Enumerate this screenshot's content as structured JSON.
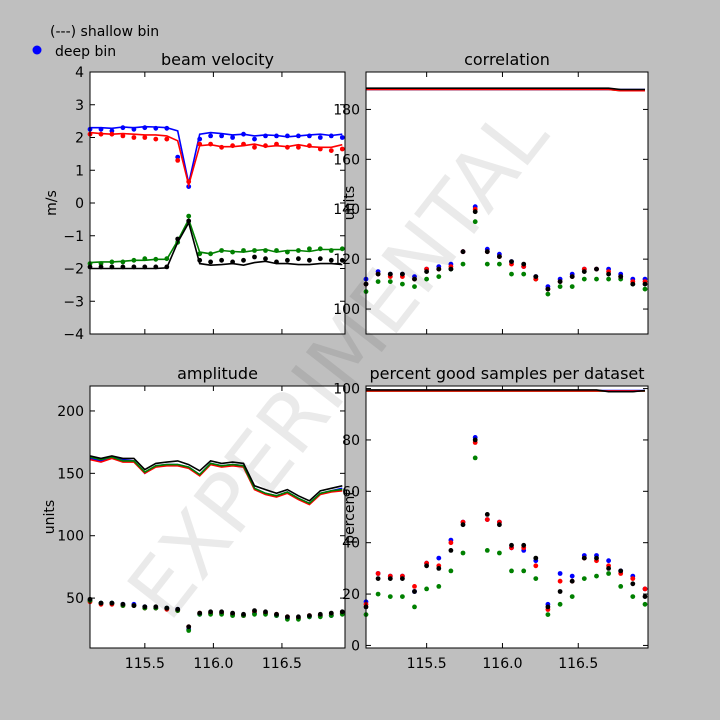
{
  "legend": {
    "line_label": "(---) shallow bin",
    "dot_label": "deep bin"
  },
  "watermark": "EXPERIMENTAL",
  "colors": {
    "background": "#bfbfbf",
    "blue": "#0000ff",
    "red": "#ff0000",
    "green": "#008000",
    "black": "#000000"
  },
  "chart_data": [
    {
      "type": "line",
      "title": "beam velocity",
      "ylabel": "m/s",
      "xlabel": "",
      "xlim": [
        115.1,
        116.96
      ],
      "ylim": [
        -4,
        4
      ],
      "yticks": [
        "4",
        "3",
        "2",
        "1",
        "0",
        "−1",
        "−2",
        "−3",
        "−4"
      ],
      "xticks": [],
      "x": [
        115.1,
        115.18,
        115.26,
        115.34,
        115.42,
        115.5,
        115.58,
        115.66,
        115.74,
        115.82,
        115.9,
        115.98,
        116.06,
        116.14,
        116.22,
        116.3,
        116.38,
        116.46,
        116.54,
        116.62,
        116.7,
        116.78,
        116.86,
        116.94
      ],
      "series": [
        {
          "color": "blue",
          "line": [
            2.3,
            2.3,
            2.28,
            2.32,
            2.3,
            2.33,
            2.32,
            2.3,
            2.2,
            0.6,
            2.1,
            2.15,
            2.12,
            2.08,
            2.1,
            2.05,
            2.08,
            2.06,
            2.02,
            2.05,
            2.08,
            2.1,
            2.06,
            2.1
          ],
          "dots": [
            2.25,
            2.25,
            2.2,
            2.3,
            2.25,
            2.3,
            2.28,
            2.28,
            1.4,
            0.5,
            1.95,
            2.05,
            2.05,
            2.0,
            2.1,
            1.95,
            2.05,
            2.05,
            2.05,
            2.05,
            2.05,
            2.0,
            2.05,
            2.0
          ]
        },
        {
          "color": "red",
          "line": [
            2.15,
            2.12,
            2.1,
            2.12,
            2.1,
            2.08,
            2.08,
            2.05,
            1.9,
            0.55,
            1.75,
            1.78,
            1.72,
            1.72,
            1.75,
            1.8,
            1.72,
            1.75,
            1.72,
            1.78,
            1.72,
            1.7,
            1.7,
            1.78
          ],
          "dots": [
            2.1,
            2.1,
            2.1,
            2.05,
            2.0,
            2.0,
            1.95,
            1.95,
            1.3,
            0.65,
            1.8,
            1.8,
            1.7,
            1.75,
            1.8,
            1.7,
            1.75,
            1.8,
            1.7,
            1.7,
            1.75,
            1.65,
            1.6,
            1.65
          ]
        },
        {
          "color": "green",
          "line": [
            -1.82,
            -1.8,
            -1.8,
            -1.78,
            -1.75,
            -1.75,
            -1.72,
            -1.72,
            -1.15,
            -0.5,
            -1.5,
            -1.55,
            -1.45,
            -1.48,
            -1.5,
            -1.45,
            -1.42,
            -1.5,
            -1.45,
            -1.45,
            -1.48,
            -1.42,
            -1.42,
            -1.42
          ],
          "dots": [
            -1.85,
            -1.85,
            -1.8,
            -1.8,
            -1.75,
            -1.7,
            -1.72,
            -1.7,
            -1.2,
            -0.4,
            -1.55,
            -1.55,
            -1.45,
            -1.5,
            -1.45,
            -1.45,
            -1.45,
            -1.45,
            -1.5,
            -1.45,
            -1.4,
            -1.4,
            -1.45,
            -1.4
          ]
        },
        {
          "color": "black",
          "line": [
            -2.0,
            -2.0,
            -2.0,
            -2.0,
            -2.0,
            -2.0,
            -2.0,
            -1.98,
            -1.2,
            -0.6,
            -1.85,
            -1.9,
            -1.88,
            -1.85,
            -1.9,
            -1.82,
            -1.78,
            -1.85,
            -1.85,
            -1.88,
            -1.88,
            -1.85,
            -1.85,
            -1.88
          ],
          "dots": [
            -1.95,
            -1.95,
            -1.95,
            -1.95,
            -1.95,
            -1.95,
            -1.95,
            -1.95,
            -1.1,
            -0.55,
            -1.75,
            -1.8,
            -1.75,
            -1.8,
            -1.75,
            -1.65,
            -1.7,
            -1.8,
            -1.75,
            -1.7,
            -1.75,
            -1.7,
            -1.75,
            -1.75
          ]
        }
      ]
    },
    {
      "type": "line",
      "title": "correlation",
      "ylabel": "units",
      "xlabel": "",
      "xlim": [
        115.1,
        116.96
      ],
      "ylim": [
        90,
        195
      ],
      "yticks": [
        "180",
        "160",
        "140",
        "120",
        "100"
      ],
      "ytick_values": [
        180,
        160,
        140,
        120,
        100
      ],
      "xticks": [],
      "x": [
        115.1,
        115.18,
        115.26,
        115.34,
        115.42,
        115.5,
        115.58,
        115.66,
        115.74,
        115.82,
        115.9,
        115.98,
        116.06,
        116.14,
        116.22,
        116.3,
        116.38,
        116.46,
        116.54,
        116.62,
        116.7,
        116.78,
        116.86,
        116.94
      ],
      "series": [
        {
          "color": "green",
          "line": [
            188,
            188,
            188,
            188,
            188,
            188,
            188,
            188,
            188,
            188,
            188,
            188,
            188,
            188,
            188,
            188,
            188,
            188,
            188,
            188,
            188,
            187.5,
            187.5,
            187.5
          ],
          "dots": [
            107,
            111,
            111,
            110,
            109,
            112,
            113,
            116,
            118,
            135,
            118,
            118,
            114,
            114,
            112,
            106,
            109,
            109,
            112,
            112,
            112,
            112,
            110,
            108
          ]
        },
        {
          "color": "blue",
          "line": [
            188,
            188,
            188,
            188,
            188,
            188,
            188,
            188,
            188,
            188,
            188,
            188,
            188,
            188,
            188,
            188,
            188,
            188,
            188,
            188,
            188,
            188,
            188,
            188
          ],
          "dots": [
            112,
            115,
            114,
            114,
            113,
            116,
            117,
            118,
            123,
            141,
            124,
            122,
            119,
            117,
            113,
            109,
            112,
            114,
            116,
            116,
            116,
            114,
            112,
            112
          ]
        },
        {
          "color": "red",
          "line": [
            188,
            188,
            188,
            188,
            188,
            188,
            188,
            188,
            188,
            188,
            188,
            188,
            188,
            188,
            188,
            188,
            188,
            188,
            188,
            188,
            188,
            187.5,
            187.5,
            187.5
          ],
          "dots": [
            110,
            114,
            113,
            113,
            112,
            116,
            116,
            117,
            123,
            140,
            123,
            121,
            118,
            117,
            112,
            108,
            111,
            113,
            116,
            116,
            115,
            113,
            111,
            111
          ]
        },
        {
          "color": "black",
          "line": [
            188.5,
            188.5,
            188.5,
            188.5,
            188.5,
            188.5,
            188.5,
            188.5,
            188.5,
            188.5,
            188.5,
            188.5,
            188.5,
            188.5,
            188.5,
            188.5,
            188.5,
            188.5,
            188.5,
            188.5,
            188.5,
            188,
            188,
            188
          ],
          "dots": [
            110,
            114,
            114,
            114,
            112,
            115,
            116,
            116,
            123,
            139,
            123,
            121,
            119,
            118,
            113,
            108,
            111,
            113,
            115,
            116,
            114,
            113,
            110,
            110
          ]
        }
      ]
    },
    {
      "type": "line",
      "title": "amplitude",
      "ylabel": "units",
      "xlabel": "",
      "xlim": [
        115.1,
        116.96
      ],
      "ylim": [
        10,
        220
      ],
      "yticks": [
        "200",
        "150",
        "100",
        "50"
      ],
      "ytick_values": [
        200,
        150,
        100,
        50
      ],
      "xticks": [
        "115.5",
        "116.0",
        "116.5"
      ],
      "xtick_values": [
        115.5,
        116.0,
        116.5
      ],
      "x": [
        115.1,
        115.18,
        115.26,
        115.34,
        115.42,
        115.5,
        115.58,
        115.66,
        115.74,
        115.82,
        115.9,
        115.98,
        116.06,
        116.14,
        116.22,
        116.3,
        116.38,
        116.46,
        116.54,
        116.62,
        116.7,
        116.78,
        116.86,
        116.94
      ],
      "series": [
        {
          "color": "blue",
          "line": [
            162,
            160,
            163,
            161,
            160,
            150,
            156,
            157,
            157,
            155,
            149,
            158,
            156,
            157,
            156,
            138,
            134,
            132,
            135,
            130,
            126,
            134,
            136,
            138
          ],
          "dots": [
            48,
            46,
            46,
            45,
            45,
            43,
            42,
            42,
            41,
            25,
            37,
            38,
            38,
            37,
            36,
            38,
            38,
            36,
            34,
            34,
            35,
            36,
            36,
            38
          ]
        },
        {
          "color": "red",
          "line": [
            161,
            159,
            162,
            159,
            159,
            150,
            155,
            156,
            156,
            154,
            148,
            157,
            155,
            156,
            155,
            137,
            133,
            131,
            134,
            129,
            125,
            133,
            135,
            136
          ],
          "dots": [
            47,
            45,
            45,
            44,
            44,
            42,
            42,
            41,
            40,
            27,
            38,
            38,
            38,
            37,
            36,
            39,
            38,
            37,
            35,
            34,
            36,
            36,
            37,
            38
          ]
        },
        {
          "color": "green",
          "line": [
            163,
            161,
            163,
            160,
            160,
            151,
            156,
            157,
            157,
            155,
            149,
            158,
            156,
            157,
            156,
            138,
            134,
            132,
            135,
            130,
            126,
            134,
            136,
            137
          ],
          "dots": [
            48,
            46,
            46,
            44,
            44,
            42,
            42,
            42,
            40,
            24,
            37,
            37,
            37,
            36,
            36,
            37,
            37,
            36,
            33,
            33,
            35,
            35,
            36,
            37
          ]
        },
        {
          "color": "black",
          "line": [
            164,
            162,
            164,
            162,
            162,
            153,
            158,
            159,
            160,
            157,
            152,
            160,
            158,
            159,
            158,
            140,
            137,
            134,
            137,
            132,
            128,
            136,
            138,
            140
          ],
          "dots": [
            49,
            46,
            46,
            45,
            44,
            43,
            43,
            42,
            41,
            27,
            38,
            39,
            39,
            38,
            37,
            40,
            39,
            37,
            35,
            35,
            36,
            37,
            38,
            39
          ]
        }
      ]
    },
    {
      "type": "line",
      "title": "percent good samples per dataset",
      "ylabel": "percent",
      "xlabel": "",
      "xlim": [
        115.1,
        116.96
      ],
      "ylim": [
        -1,
        101
      ],
      "yticks": [
        "100",
        "80",
        "60",
        "40",
        "20",
        "0"
      ],
      "ytick_values": [
        100,
        80,
        60,
        40,
        20,
        0
      ],
      "xticks": [
        "115.5",
        "116.0",
        "116.5"
      ],
      "xtick_values": [
        115.5,
        116.0,
        116.5
      ],
      "x": [
        115.1,
        115.18,
        115.26,
        115.34,
        115.42,
        115.5,
        115.58,
        115.66,
        115.74,
        115.82,
        115.9,
        115.98,
        116.06,
        116.14,
        116.22,
        116.3,
        116.38,
        116.46,
        116.54,
        116.62,
        116.7,
        116.78,
        116.86,
        116.94
      ],
      "series": [
        {
          "color": "green",
          "line": [
            99,
            99,
            99,
            99,
            99,
            99,
            99,
            99,
            99,
            99,
            99,
            99,
            99,
            99,
            99,
            99,
            99,
            99,
            99,
            99,
            99,
            99,
            99,
            99
          ],
          "dots": [
            12,
            20,
            19,
            19,
            15,
            22,
            23,
            29,
            36,
            73,
            37,
            36,
            29,
            29,
            26,
            12,
            16,
            19,
            26,
            27,
            28,
            23,
            19,
            16
          ]
        },
        {
          "color": "blue",
          "line": [
            99.2,
            99.2,
            99.2,
            99.2,
            99.2,
            99.2,
            99.2,
            99.2,
            99.2,
            99.2,
            99.2,
            99.2,
            99.2,
            99.2,
            99.2,
            99.2,
            99.2,
            99.2,
            99.2,
            99.2,
            99.2,
            99.2,
            99.2,
            99.2
          ],
          "dots": [
            17,
            28,
            27,
            27,
            21,
            32,
            34,
            41,
            48,
            81,
            49,
            48,
            38,
            37,
            33,
            16,
            28,
            27,
            35,
            35,
            33,
            29,
            27,
            22
          ]
        },
        {
          "color": "red",
          "line": [
            99.1,
            99.1,
            99.1,
            99.1,
            99.1,
            99.1,
            99.1,
            99.1,
            99.1,
            99.1,
            99.1,
            99.1,
            99.1,
            99.1,
            99.1,
            99.1,
            99.1,
            99.1,
            99.1,
            99.1,
            99.1,
            99.1,
            99.1,
            99.1
          ],
          "dots": [
            16,
            28,
            27,
            27,
            23,
            32,
            31,
            40,
            48,
            79,
            49,
            48,
            38,
            38,
            31,
            14,
            25,
            25,
            34,
            33,
            31,
            28,
            26,
            22
          ]
        },
        {
          "color": "black",
          "line": [
            99.5,
            99.5,
            99.5,
            99.5,
            99.5,
            99.5,
            99.5,
            99.5,
            99.5,
            99.5,
            99.5,
            99.5,
            99.5,
            99.5,
            99.5,
            99.5,
            99.5,
            99.5,
            99.5,
            99.5,
            98.8,
            98.8,
            98.8,
            99.2
          ],
          "dots": [
            15,
            26,
            26,
            26,
            21,
            31,
            30,
            37,
            47,
            80,
            51,
            47,
            39,
            39,
            34,
            15,
            21,
            25,
            34,
            34,
            30,
            29,
            24,
            19
          ]
        }
      ]
    }
  ]
}
